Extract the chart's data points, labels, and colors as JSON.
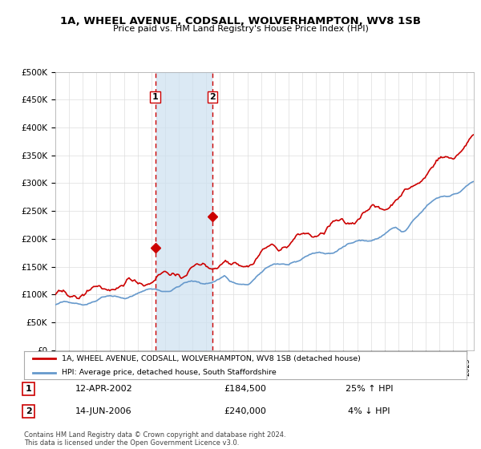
{
  "title": "1A, WHEEL AVENUE, CODSALL, WOLVERHAMPTON, WV8 1SB",
  "subtitle": "Price paid vs. HM Land Registry's House Price Index (HPI)",
  "legend_line1": "1A, WHEEL AVENUE, CODSALL, WOLVERHAMPTON, WV8 1SB (detached house)",
  "legend_line2": "HPI: Average price, detached house, South Staffordshire",
  "footnote": "Contains HM Land Registry data © Crown copyright and database right 2024.\nThis data is licensed under the Open Government Licence v3.0.",
  "sale1_label": "1",
  "sale1_date": "12-APR-2002",
  "sale1_price": "£184,500",
  "sale1_hpi": "25% ↑ HPI",
  "sale2_label": "2",
  "sale2_date": "14-JUN-2006",
  "sale2_price": "£240,000",
  "sale2_hpi": "4% ↓ HPI",
  "sale1_year": 2002.28,
  "sale1_value": 184500,
  "sale2_year": 2006.45,
  "sale2_value": 240000,
  "price_color": "#cc0000",
  "hpi_color": "#6699cc",
  "shade_color": "#cce0f0",
  "vline_color": "#cc0000",
  "marker_color": "#cc0000",
  "background_color": "#ffffff",
  "grid_color": "#dddddd",
  "ylim": [
    0,
    500000
  ],
  "ytick_values": [
    0,
    50000,
    100000,
    150000,
    200000,
    250000,
    300000,
    350000,
    400000,
    450000,
    500000
  ],
  "xmin": 1995,
  "xmax": 2025.5,
  "shade_xmin": 2002.28,
  "shade_xmax": 2006.45
}
